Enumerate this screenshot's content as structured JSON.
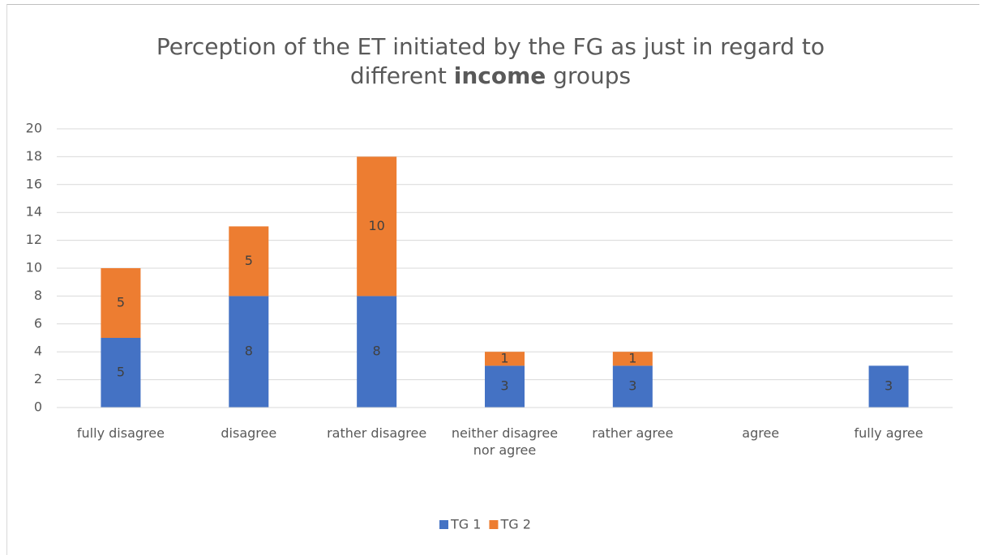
{
  "chart_data": {
    "type": "stacked_bar",
    "title": [
      {
        "text": "Perception of the ET initiated by the FG as just in regard to different ",
        "bold": false
      },
      {
        "text": "income",
        "bold": true
      },
      {
        "text": " groups",
        "bold": false
      }
    ],
    "categories": [
      "fully disagree",
      "disagree",
      "rather disagree",
      "neither disagree nor agree",
      "rather agree",
      "agree",
      "fully agree"
    ],
    "series": [
      {
        "name": "TG 1",
        "color": "#4472c4",
        "values": [
          5,
          8,
          8,
          3,
          3,
          null,
          3
        ]
      },
      {
        "name": "TG 2",
        "color": "#ed7d31",
        "values": [
          5,
          5,
          10,
          1,
          1,
          null,
          null
        ]
      }
    ],
    "ylim": [
      0,
      20
    ],
    "yticks": [
      0,
      2,
      4,
      6,
      8,
      10,
      12,
      14,
      16,
      18,
      20
    ],
    "grid": true,
    "legend": "bottom"
  }
}
